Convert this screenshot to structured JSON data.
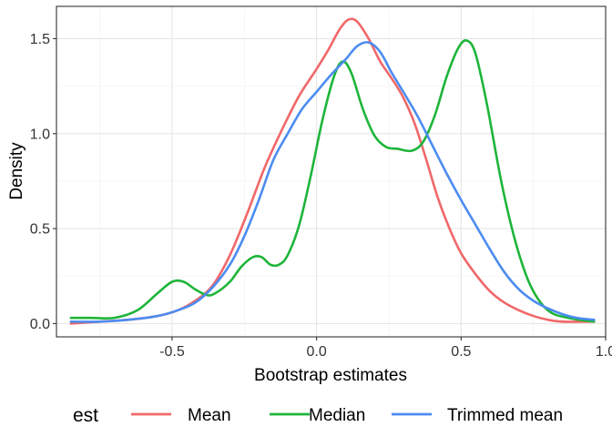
{
  "chart_data": {
    "type": "line",
    "title": "",
    "xlabel": "Bootstrap estimates",
    "ylabel": "Density",
    "xlim": [
      -0.9,
      1.0
    ],
    "ylim": [
      -0.07,
      1.67
    ],
    "x_ticks": [
      -0.5,
      0.0,
      0.5,
      1.0
    ],
    "x_tick_labels": [
      "-0.5",
      "0.0",
      "0.5",
      "1.0"
    ],
    "y_ticks": [
      0.0,
      0.5,
      1.0,
      1.5
    ],
    "y_tick_labels": [
      "0.0",
      "0.5",
      "1.0",
      "1.5"
    ],
    "grid": true,
    "legend": {
      "title": "est",
      "position": "bottom"
    },
    "series": [
      {
        "name": "Mean",
        "color": "#F0686A",
        "points": [
          [
            -0.85,
            0.0
          ],
          [
            -0.75,
            0.01
          ],
          [
            -0.65,
            0.02
          ],
          [
            -0.55,
            0.04
          ],
          [
            -0.48,
            0.07
          ],
          [
            -0.42,
            0.12
          ],
          [
            -0.36,
            0.2
          ],
          [
            -0.3,
            0.36
          ],
          [
            -0.24,
            0.58
          ],
          [
            -0.18,
            0.82
          ],
          [
            -0.12,
            1.02
          ],
          [
            -0.06,
            1.2
          ],
          [
            0.0,
            1.34
          ],
          [
            0.04,
            1.44
          ],
          [
            0.08,
            1.55
          ],
          [
            0.11,
            1.6
          ],
          [
            0.14,
            1.59
          ],
          [
            0.18,
            1.5
          ],
          [
            0.22,
            1.38
          ],
          [
            0.26,
            1.29
          ],
          [
            0.3,
            1.19
          ],
          [
            0.34,
            1.05
          ],
          [
            0.38,
            0.86
          ],
          [
            0.42,
            0.66
          ],
          [
            0.46,
            0.5
          ],
          [
            0.5,
            0.37
          ],
          [
            0.55,
            0.26
          ],
          [
            0.6,
            0.17
          ],
          [
            0.65,
            0.11
          ],
          [
            0.7,
            0.07
          ],
          [
            0.75,
            0.04
          ],
          [
            0.8,
            0.02
          ],
          [
            0.85,
            0.01
          ],
          [
            0.96,
            0.01
          ]
        ]
      },
      {
        "name": "Median",
        "color": "#1EB53A",
        "points": [
          [
            -0.85,
            0.03
          ],
          [
            -0.78,
            0.03
          ],
          [
            -0.7,
            0.03
          ],
          [
            -0.62,
            0.07
          ],
          [
            -0.55,
            0.16
          ],
          [
            -0.5,
            0.22
          ],
          [
            -0.46,
            0.22
          ],
          [
            -0.42,
            0.18
          ],
          [
            -0.38,
            0.15
          ],
          [
            -0.35,
            0.16
          ],
          [
            -0.3,
            0.22
          ],
          [
            -0.26,
            0.3
          ],
          [
            -0.22,
            0.35
          ],
          [
            -0.19,
            0.35
          ],
          [
            -0.16,
            0.31
          ],
          [
            -0.13,
            0.31
          ],
          [
            -0.1,
            0.36
          ],
          [
            -0.06,
            0.52
          ],
          [
            -0.02,
            0.78
          ],
          [
            0.02,
            1.07
          ],
          [
            0.06,
            1.3
          ],
          [
            0.09,
            1.38
          ],
          [
            0.12,
            1.32
          ],
          [
            0.16,
            1.13
          ],
          [
            0.2,
            0.99
          ],
          [
            0.24,
            0.93
          ],
          [
            0.28,
            0.92
          ],
          [
            0.33,
            0.91
          ],
          [
            0.37,
            0.96
          ],
          [
            0.41,
            1.1
          ],
          [
            0.45,
            1.3
          ],
          [
            0.49,
            1.45
          ],
          [
            0.52,
            1.49
          ],
          [
            0.55,
            1.42
          ],
          [
            0.59,
            1.15
          ],
          [
            0.64,
            0.74
          ],
          [
            0.69,
            0.42
          ],
          [
            0.74,
            0.2
          ],
          [
            0.8,
            0.07
          ],
          [
            0.87,
            0.03
          ],
          [
            0.96,
            0.01
          ]
        ]
      },
      {
        "name": "Trimmed mean",
        "color": "#4C8CF0",
        "points": [
          [
            -0.85,
            0.01
          ],
          [
            -0.75,
            0.01
          ],
          [
            -0.65,
            0.02
          ],
          [
            -0.55,
            0.04
          ],
          [
            -0.48,
            0.07
          ],
          [
            -0.42,
            0.11
          ],
          [
            -0.36,
            0.19
          ],
          [
            -0.3,
            0.31
          ],
          [
            -0.25,
            0.46
          ],
          [
            -0.2,
            0.65
          ],
          [
            -0.15,
            0.86
          ],
          [
            -0.1,
            1.0
          ],
          [
            -0.05,
            1.13
          ],
          [
            0.0,
            1.22
          ],
          [
            0.05,
            1.31
          ],
          [
            0.1,
            1.39
          ],
          [
            0.14,
            1.46
          ],
          [
            0.18,
            1.48
          ],
          [
            0.22,
            1.43
          ],
          [
            0.26,
            1.32
          ],
          [
            0.3,
            1.22
          ],
          [
            0.35,
            1.09
          ],
          [
            0.4,
            0.94
          ],
          [
            0.45,
            0.79
          ],
          [
            0.5,
            0.65
          ],
          [
            0.55,
            0.52
          ],
          [
            0.6,
            0.39
          ],
          [
            0.65,
            0.27
          ],
          [
            0.7,
            0.18
          ],
          [
            0.75,
            0.12
          ],
          [
            0.8,
            0.08
          ],
          [
            0.85,
            0.05
          ],
          [
            0.9,
            0.03
          ],
          [
            0.96,
            0.02
          ]
        ]
      }
    ]
  }
}
